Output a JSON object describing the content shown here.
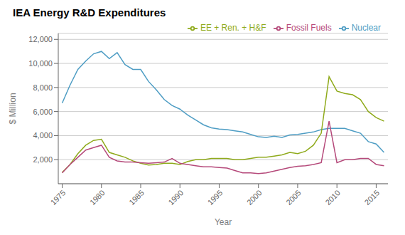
{
  "chart_data": {
    "type": "line",
    "title": "IEA Energy R&D Expenditures",
    "xlabel": "Year",
    "ylabel": "$ Million",
    "x": [
      1975,
      1976,
      1977,
      1978,
      1979,
      1980,
      1981,
      1982,
      1983,
      1984,
      1985,
      1986,
      1987,
      1988,
      1989,
      1990,
      1991,
      1992,
      1993,
      1994,
      1995,
      1996,
      1997,
      1998,
      1999,
      2000,
      2001,
      2002,
      2003,
      2004,
      2005,
      2006,
      2007,
      2008,
      2009,
      2010,
      2011,
      2012,
      2013,
      2014,
      2015,
      2016
    ],
    "series": [
      {
        "name": "Nuclear",
        "color": "#4e9dc4",
        "values": [
          6700,
          8200,
          9500,
          10200,
          10800,
          11000,
          10400,
          10900,
          9900,
          9500,
          9500,
          8500,
          7800,
          7000,
          6500,
          6200,
          5700,
          5300,
          4900,
          4650,
          4550,
          4500,
          4400,
          4300,
          4100,
          3900,
          3850,
          3950,
          3850,
          4050,
          4100,
          4200,
          4300,
          4500,
          4600,
          4600,
          4600,
          4400,
          4200,
          3500,
          3300,
          2600
        ]
      },
      {
        "name": "EE + Ren. + H&F",
        "color": "#8faa1b",
        "values": [
          950,
          1600,
          2500,
          3200,
          3600,
          3700,
          2600,
          2400,
          2200,
          1900,
          1700,
          1550,
          1600,
          1700,
          1700,
          1600,
          1850,
          2000,
          2000,
          2100,
          2100,
          2100,
          2000,
          2000,
          2100,
          2200,
          2200,
          2300,
          2400,
          2600,
          2500,
          2700,
          3200,
          4200,
          8900,
          7700,
          7500,
          7400,
          7000,
          6000,
          5500,
          5200
        ]
      },
      {
        "name": "Fossil Fuels",
        "color": "#b5497a",
        "values": [
          900,
          1600,
          2200,
          2800,
          3000,
          3200,
          2200,
          1900,
          1800,
          1800,
          1750,
          1700,
          1750,
          1800,
          2100,
          1700,
          1600,
          1500,
          1400,
          1400,
          1350,
          1300,
          1100,
          900,
          900,
          850,
          900,
          1050,
          1200,
          1350,
          1450,
          1500,
          1600,
          1750,
          5200,
          1750,
          2000,
          2000,
          2100,
          2100,
          1600,
          1500
        ]
      }
    ],
    "xlim": [
      1974.5,
      2016.5
    ],
    "xticks": [
      1975,
      1980,
      1985,
      1990,
      1995,
      2000,
      2005,
      2010,
      2015
    ],
    "ylim": [
      0,
      12500
    ],
    "yticks": [
      {
        "value": 2000,
        "label": "2,000"
      },
      {
        "value": 4000,
        "label": "4,000"
      },
      {
        "value": 6000,
        "label": "6,000"
      },
      {
        "value": 8000,
        "label": "8,000"
      },
      {
        "value": 10000,
        "label": "10,000"
      },
      {
        "value": 12000,
        "label": "12,000"
      }
    ],
    "grid": "y",
    "legend": "upper right"
  }
}
